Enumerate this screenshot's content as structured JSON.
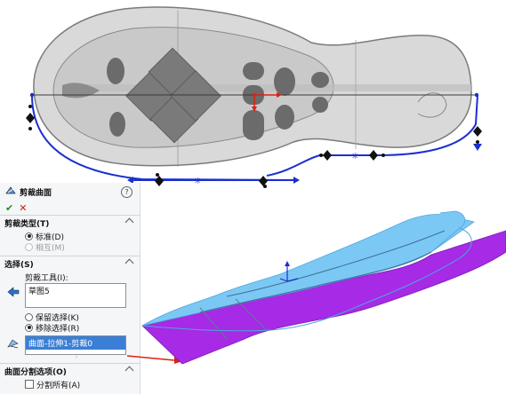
{
  "panel": {
    "title": "剪裁曲面",
    "help_icon": "?",
    "ok_icon": "check-icon",
    "cancel_icon": "close-icon",
    "trim_type": {
      "header": "剪裁类型(T)",
      "options": [
        {
          "label": "标准(D)",
          "selected": true,
          "enabled": true
        },
        {
          "label": "相互(M)",
          "selected": false,
          "enabled": false
        }
      ]
    },
    "selections": {
      "header": "选择(S)",
      "trim_tool_label": "剪裁工具(I):",
      "trim_tool_value": "草图5",
      "keep_remove": [
        {
          "label": "保留选择(K)",
          "selected": false
        },
        {
          "label": "移除选择(R)",
          "selected": true
        }
      ],
      "selected_item": "曲面-拉伸1-剪裁0"
    },
    "split_options": {
      "header": "曲面分割选项(O)",
      "split_all": {
        "label": "分割所有(A)",
        "checked": false
      }
    }
  },
  "colors": {
    "sketch_blue": "#1a2fd0",
    "surface_light_blue": "#7cc8f4",
    "surface_purple": "#a62ae6",
    "arrow_red": "#e02010",
    "selection_blue": "#3a7fd5"
  }
}
